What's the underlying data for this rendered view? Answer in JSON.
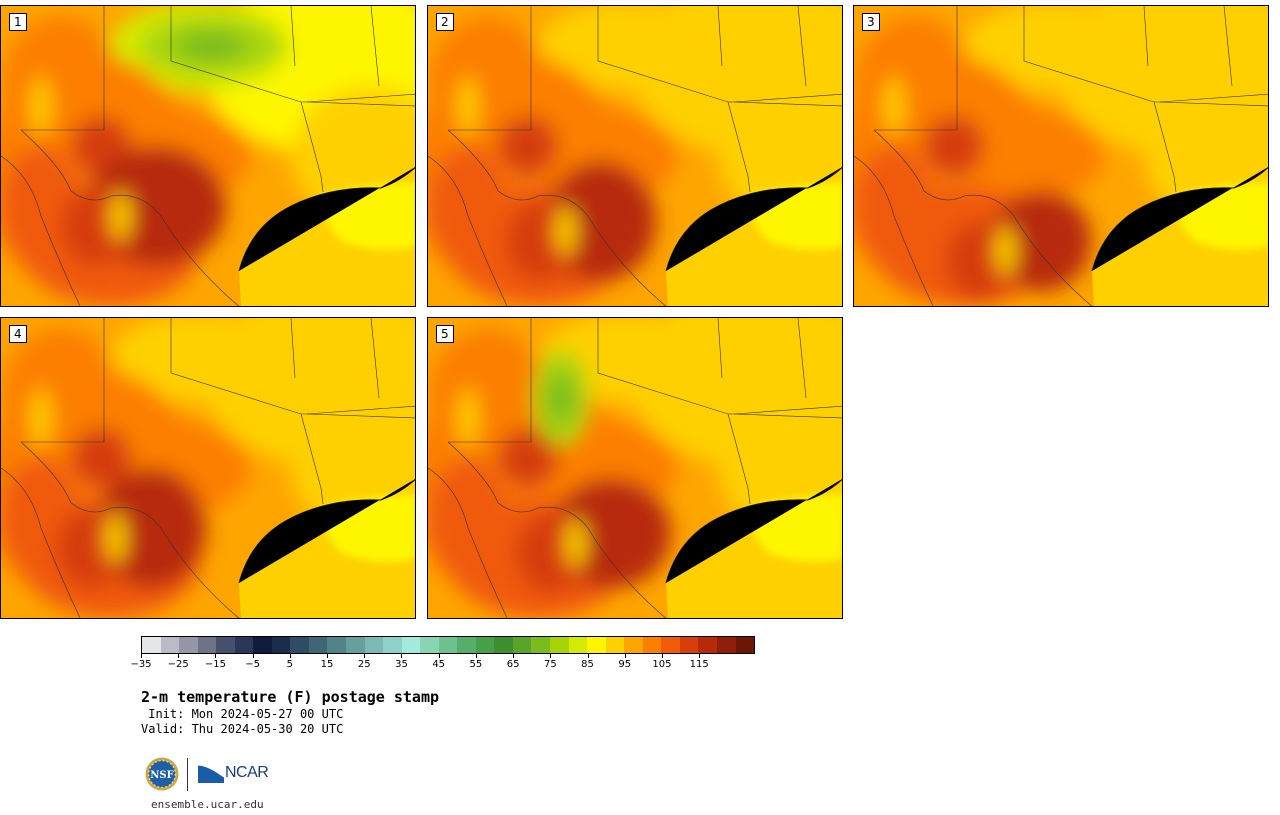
{
  "panels": [
    {
      "label": "1"
    },
    {
      "label": "2"
    },
    {
      "label": "3"
    },
    {
      "label": "4"
    },
    {
      "label": "5"
    }
  ],
  "colorbar": {
    "colors": [
      "#e4e6ea",
      "#b9bbc6",
      "#9597a8",
      "#6f7289",
      "#45506d",
      "#2b3759",
      "#101c3c",
      "#1b2d4d",
      "#2f4d62",
      "#3f6675",
      "#528388",
      "#689e9e",
      "#7cb8b4",
      "#8ed1c8",
      "#a3eadc",
      "#87d6b1",
      "#6cc390",
      "#57ae6a",
      "#45a048",
      "#3f8f30",
      "#59a52a",
      "#7cbb1c",
      "#a7d407",
      "#d4ea00",
      "#fef600",
      "#fed000",
      "#fea500",
      "#fc7f00",
      "#f05a08",
      "#d63e0a",
      "#b72a09",
      "#8f1f08",
      "#6a1505"
    ],
    "tick_labels": [
      "−35",
      "−25",
      "−15",
      "−5",
      "5",
      "15",
      "25",
      "35",
      "45",
      "55",
      "65",
      "75",
      "85",
      "95",
      "105",
      "115"
    ]
  },
  "title": "2-m temperature (F) postage stamp",
  "init": " Init: Mon 2024-05-27 00 UTC",
  "valid": "Valid: Thu 2024-05-30 20 UTC",
  "logos": {
    "nsf": "NSF",
    "ncar": "NCAR"
  },
  "url": "ensemble.ucar.edu"
}
